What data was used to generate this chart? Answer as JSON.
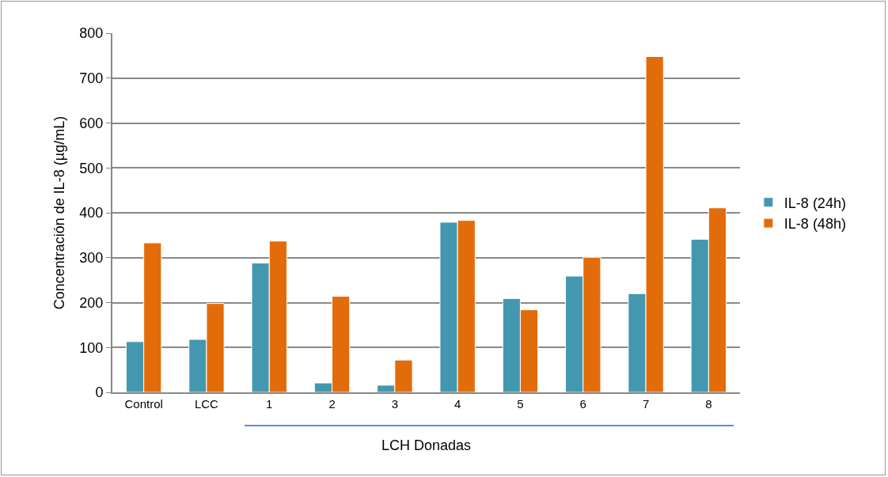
{
  "chart_data": {
    "type": "bar",
    "xlabel": "LCH Donadas",
    "ylabel": "Concentración de IL-8 (µg/mL)",
    "categories": [
      "Control",
      "LCC",
      "1",
      "2",
      "3",
      "4",
      "5",
      "6",
      "7",
      "8"
    ],
    "series": [
      {
        "name": "IL-8 (24h)",
        "color": "#4398b0",
        "values": [
          113,
          118,
          288,
          21,
          16,
          379,
          209,
          259,
          220,
          341
        ]
      },
      {
        "name": "IL-8 (48h)",
        "color": "#e36c0a",
        "values": [
          333,
          198,
          337,
          214,
          72,
          383,
          184,
          301,
          748,
          411
        ]
      }
    ],
    "ylim": [
      0,
      800
    ],
    "yticks": [
      0,
      100,
      200,
      300,
      400,
      500,
      600,
      700,
      800
    ],
    "grid": "y",
    "legend": "right"
  }
}
